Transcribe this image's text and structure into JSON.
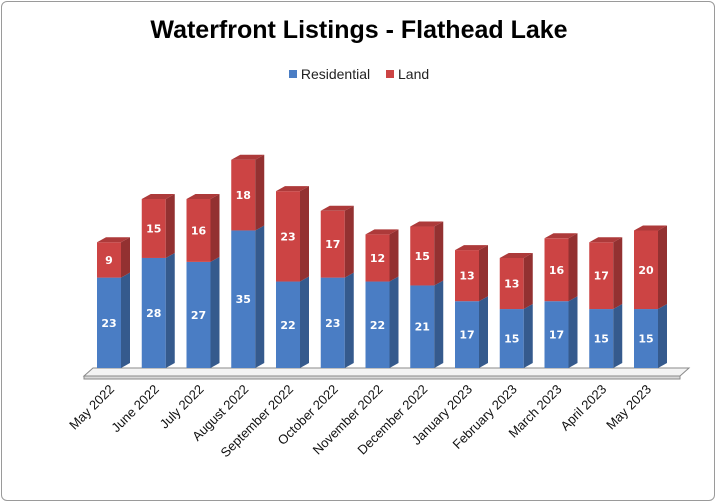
{
  "chart_data": {
    "type": "bar",
    "stacked": true,
    "three_d": true,
    "title": "Waterfront Listings - Flathead Lake",
    "legend_position": "top",
    "grid": false,
    "categories": [
      "May 2022",
      "June 2022",
      "July 2022",
      "August 2022",
      "September 2022",
      "October 2022",
      "November 2022",
      "December 2022",
      "January 2023",
      "February 2023",
      "March 2023",
      "April 2023",
      "May 2023"
    ],
    "series": [
      {
        "name": "Residential",
        "color": "#4a7dc4",
        "values": [
          23,
          28,
          27,
          35,
          22,
          23,
          22,
          21,
          17,
          15,
          17,
          15,
          15
        ]
      },
      {
        "name": "Land",
        "color": "#cc4444",
        "values": [
          9,
          15,
          16,
          18,
          23,
          17,
          12,
          15,
          13,
          13,
          16,
          17,
          20
        ]
      }
    ]
  }
}
